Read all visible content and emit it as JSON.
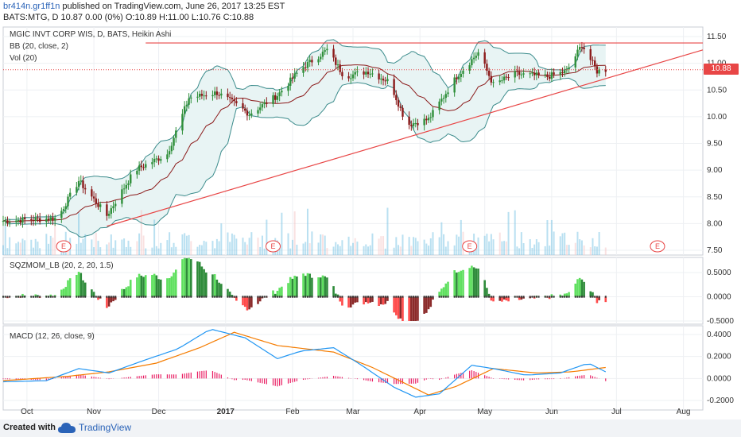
{
  "header": {
    "user": "br414n.gr1ff1n",
    "published_text": "published on TradingView.com, June 26, 2017 13:25 EST",
    "symbol_line": "BATS:MTG, D  10.87 0.00 (0%) O:10.89 H:11.00 L:10.76 C:10.88"
  },
  "indicators": {
    "main_title": "MGIC INVT CORP WIS, D, BATS, Heikin Ashi",
    "bb": "BB (20, close, 2)",
    "vol": "Vol (20)",
    "sqz": "SQZMOM_LB (20, 2, 20, 1.5)",
    "macd": "MACD (12, 26, close, 9)"
  },
  "footer": {
    "created": "Created with",
    "brand": "TradingView"
  },
  "colors": {
    "up": "#2f8f3a",
    "down": "#8b1a1a",
    "bb_band": "#3c8c8c",
    "bb_mid": "#8b1a1a",
    "trend": "#e84646",
    "macd": "#2196f3",
    "signal": "#f57c00",
    "hist": "#e91e63",
    "vol": "#7fc7e6",
    "sqz_green": "#5fe05f",
    "sqz_darkgreen": "#2e8b3a",
    "sqz_red": "#ff4a4a",
    "sqz_darkred": "#8b2a2a"
  },
  "chart_data": [
    {
      "type": "candlestick",
      "title": "MGIC INVT CORP WIS, D, BATS, Heikin Ashi",
      "ylim": [
        7.5,
        11.5
      ],
      "y_ticks": [
        "11.50",
        "11.00",
        "10.50",
        "10.00",
        "9.50",
        "9.00",
        "8.50",
        "8.00",
        "7.50"
      ],
      "x_ticks": [
        "Oct",
        "Nov",
        "Dec",
        "2017",
        "Feb",
        "Mar",
        "Apr",
        "May",
        "Jun",
        "Jul",
        "Aug"
      ],
      "last_price": "10.88",
      "close_waypoints": [
        [
          "2016-09-20",
          8.05
        ],
        [
          "2016-10-15",
          8.1
        ],
        [
          "2016-10-25",
          8.8
        ],
        [
          "2016-11-07",
          8.15
        ],
        [
          "2016-11-20",
          9.0
        ],
        [
          "2016-12-05",
          9.3
        ],
        [
          "2016-12-15",
          10.35
        ],
        [
          "2016-12-28",
          10.45
        ],
        [
          "2017-01-05",
          10.25
        ],
        [
          "2017-01-12",
          10.05
        ],
        [
          "2017-01-25",
          10.4
        ],
        [
          "2017-02-05",
          10.9
        ],
        [
          "2017-02-17",
          11.25
        ],
        [
          "2017-02-25",
          10.75
        ],
        [
          "2017-03-08",
          10.85
        ],
        [
          "2017-03-18",
          10.65
        ],
        [
          "2017-03-26",
          9.85
        ],
        [
          "2017-04-05",
          9.95
        ],
        [
          "2017-04-18",
          10.75
        ],
        [
          "2017-04-28",
          11.2
        ],
        [
          "2017-05-05",
          10.6
        ],
        [
          "2017-05-15",
          10.8
        ],
        [
          "2017-05-30",
          10.75
        ],
        [
          "2017-06-08",
          10.85
        ],
        [
          "2017-06-15",
          11.35
        ],
        [
          "2017-06-22",
          10.85
        ],
        [
          "2017-06-26",
          10.88
        ]
      ],
      "earnings_markers": [
        "2016-10-18",
        "2017-01-23",
        "2017-04-24",
        "2017-07-20"
      ]
    },
    {
      "type": "bar",
      "title": "SQZMOM_LB (20, 2, 20, 1.5)",
      "ylim": [
        -0.55,
        0.8
      ],
      "y_ticks": [
        "0.5000",
        "0.0000",
        "-0.5000"
      ]
    },
    {
      "type": "line",
      "title": "MACD (12, 26, close, 9)",
      "ylim": [
        -0.24,
        0.48
      ],
      "y_ticks": [
        "0.4000",
        "0.2000",
        "0.0000",
        "-0.2000"
      ],
      "series": [
        {
          "values_waypoints": [
            [
              "2016-09-20",
              -0.03
            ],
            [
              "2016-10-10",
              -0.02
            ],
            [
              "2016-10-25",
              0.09
            ],
            [
              "2016-11-08",
              0.05
            ],
            [
              "2016-11-25",
              0.17
            ],
            [
              "2016-12-10",
              0.27
            ],
            [
              "2016-12-25",
              0.45
            ],
            [
              "2017-01-10",
              0.37
            ],
            [
              "2017-01-25",
              0.18
            ],
            [
              "2017-02-05",
              0.25
            ],
            [
              "2017-02-20",
              0.28
            ],
            [
              "2017-03-05",
              0.12
            ],
            [
              "2017-03-20",
              -0.08
            ],
            [
              "2017-03-30",
              -0.17
            ],
            [
              "2017-04-10",
              -0.14
            ],
            [
              "2017-04-25",
              0.12
            ],
            [
              "2017-05-05",
              0.09
            ],
            [
              "2017-05-20",
              0.03
            ],
            [
              "2017-06-05",
              0.05
            ],
            [
              "2017-06-18",
              0.14
            ],
            [
              "2017-06-26",
              0.06
            ]
          ]
        },
        {
          "values_waypoints": [
            [
              "2016-09-20",
              -0.02
            ],
            [
              "2016-10-20",
              0.02
            ],
            [
              "2016-11-08",
              0.06
            ],
            [
              "2016-11-30",
              0.14
            ],
            [
              "2016-12-20",
              0.28
            ],
            [
              "2017-01-05",
              0.42
            ],
            [
              "2017-01-25",
              0.3
            ],
            [
              "2017-02-20",
              0.24
            ],
            [
              "2017-03-10",
              0.1
            ],
            [
              "2017-04-05",
              -0.15
            ],
            [
              "2017-04-18",
              -0.07
            ],
            [
              "2017-05-05",
              0.09
            ],
            [
              "2017-05-25",
              0.05
            ],
            [
              "2017-06-10",
              0.06
            ],
            [
              "2017-06-26",
              0.1
            ]
          ]
        }
      ]
    }
  ]
}
